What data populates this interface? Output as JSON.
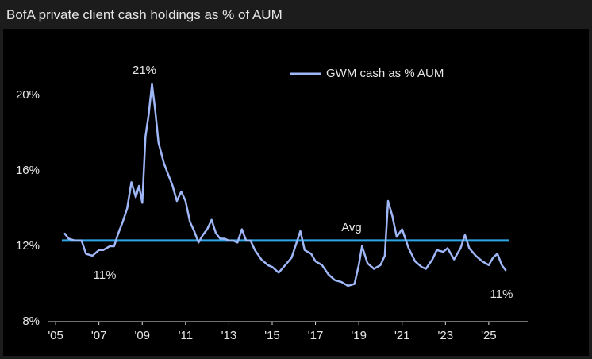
{
  "chart_data": {
    "type": "line",
    "title": "BofA private client cash holdings as % of AUM",
    "x": [
      2005.4,
      2005.6,
      2005.9,
      2006.2,
      2006.4,
      2006.7,
      2007.0,
      2007.2,
      2007.5,
      2007.7,
      2007.9,
      2008.1,
      2008.3,
      2008.5,
      2008.7,
      2008.85,
      2009.0,
      2009.15,
      2009.3,
      2009.45,
      2009.6,
      2009.75,
      2010.0,
      2010.2,
      2010.4,
      2010.6,
      2010.8,
      2011.0,
      2011.2,
      2011.4,
      2011.6,
      2011.8,
      2012.0,
      2012.2,
      2012.4,
      2012.6,
      2012.8,
      2013.0,
      2013.2,
      2013.4,
      2013.6,
      2013.8,
      2014.0,
      2014.2,
      2014.5,
      2014.8,
      2015.0,
      2015.3,
      2015.6,
      2015.9,
      2016.1,
      2016.3,
      2016.5,
      2016.8,
      2017.0,
      2017.3,
      2017.6,
      2017.9,
      2018.2,
      2018.5,
      2018.8,
      2019.0,
      2019.15,
      2019.4,
      2019.7,
      2020.0,
      2020.2,
      2020.35,
      2020.55,
      2020.75,
      2021.0,
      2021.3,
      2021.6,
      2021.9,
      2022.1,
      2022.4,
      2022.6,
      2022.9,
      2023.1,
      2023.4,
      2023.7,
      2023.9,
      2024.1,
      2024.4,
      2024.7,
      2025.0,
      2025.2,
      2025.4,
      2025.6,
      2025.8
    ],
    "series": [
      {
        "name": "GWM cash as % AUM",
        "color": "#9fb6f7",
        "values": [
          12.7,
          12.4,
          12.3,
          12.3,
          11.6,
          11.5,
          11.8,
          11.8,
          12.0,
          12.0,
          12.7,
          13.3,
          14.0,
          15.4,
          14.6,
          15.2,
          14.3,
          17.8,
          19.0,
          20.6,
          19.2,
          17.5,
          16.4,
          15.8,
          15.2,
          14.4,
          14.9,
          14.4,
          13.3,
          12.8,
          12.2,
          12.6,
          12.9,
          13.4,
          12.7,
          12.4,
          12.4,
          12.3,
          12.3,
          12.2,
          12.9,
          12.3,
          12.3,
          11.8,
          11.3,
          11.0,
          10.9,
          10.6,
          11.0,
          11.4,
          12.1,
          12.8,
          11.8,
          11.6,
          11.2,
          11.0,
          10.5,
          10.2,
          10.1,
          9.9,
          10.0,
          11.0,
          12.0,
          11.1,
          10.8,
          11.0,
          11.5,
          14.4,
          13.6,
          12.5,
          12.9,
          11.9,
          11.2,
          10.9,
          10.8,
          11.3,
          11.8,
          11.7,
          11.9,
          11.3,
          11.9,
          12.6,
          11.9,
          11.5,
          11.2,
          11.0,
          11.4,
          11.6,
          11.0,
          10.7
        ]
      }
    ],
    "average": {
      "label": "Avg",
      "value": 12.3,
      "color": "#2ea6e6"
    },
    "annotations": [
      "21%",
      "11%",
      "11%"
    ],
    "xlim": [
      2004.63,
      2026.8
    ],
    "ylim": [
      8,
      22
    ],
    "yticks": [
      {
        "value": 8,
        "label": "8%"
      },
      {
        "value": 12,
        "label": "12%"
      },
      {
        "value": 16,
        "label": "16%"
      },
      {
        "value": 20,
        "label": "20%"
      }
    ],
    "xticks": [
      {
        "value": 2005,
        "label": "'05"
      },
      {
        "value": 2007,
        "label": "'07"
      },
      {
        "value": 2009,
        "label": "'09"
      },
      {
        "value": 2011,
        "label": "'11"
      },
      {
        "value": 2013,
        "label": "'13"
      },
      {
        "value": 2015,
        "label": "'15"
      },
      {
        "value": 2017,
        "label": "'17"
      },
      {
        "value": 2019,
        "label": "'19"
      },
      {
        "value": 2021,
        "label": "'21"
      },
      {
        "value": 2023,
        "label": "'23"
      },
      {
        "value": 2025,
        "label": "'25"
      }
    ],
    "legend": "top-right"
  }
}
